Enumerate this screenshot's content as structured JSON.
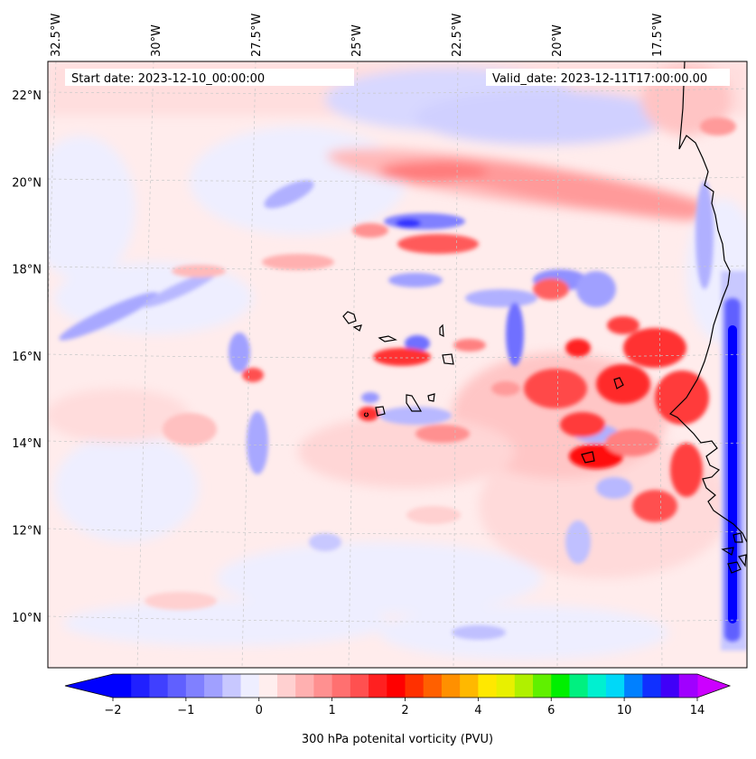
{
  "header": {
    "start_date": "Start date: 2023-12-10_00:00:00",
    "valid_date": "Valid_date: 2023-12-11T17:00:00.00"
  },
  "map": {
    "projection": "lambert-conformal",
    "lon_range": [
      -33.0,
      -15.3
    ],
    "lat_range": [
      8.9,
      22.8
    ],
    "gridlines": "dashed-light-grey",
    "lon_labels": [
      {
        "lon": -32.5,
        "text": "32.5°W"
      },
      {
        "lon": -30.0,
        "text": "30°W"
      },
      {
        "lon": -27.5,
        "text": "27.5°W"
      },
      {
        "lon": -25.0,
        "text": "25°W"
      },
      {
        "lon": -22.5,
        "text": "22.5°W"
      },
      {
        "lon": -20.0,
        "text": "20°W"
      },
      {
        "lon": -17.5,
        "text": "17.5°W"
      }
    ],
    "lat_labels": [
      {
        "lat": 22,
        "text": "22°N"
      },
      {
        "lat": 20,
        "text": "20°N"
      },
      {
        "lat": 18,
        "text": "18°N"
      },
      {
        "lat": 16,
        "text": "16°N"
      },
      {
        "lat": 14,
        "text": "14°N"
      },
      {
        "lat": 12,
        "text": "12°N"
      },
      {
        "lat": 10,
        "text": "10°N"
      }
    ],
    "features": [
      {
        "name": "west-african-coastline",
        "type": "coastline"
      },
      {
        "name": "cape-verde-islands",
        "type": "islands"
      },
      {
        "name": "bijagos-islands",
        "type": "islands"
      }
    ]
  },
  "colorbar": {
    "label": "300 hPa potenital vorticity (PVU)",
    "extend": "both",
    "under_color": "#0000ff",
    "over_color": "#cc00ff",
    "colors": [
      "#0000ff",
      "#2020ff",
      "#4040ff",
      "#6060ff",
      "#8080ff",
      "#a0a0ff",
      "#c8c8ff",
      "#eeeeff",
      "#ffeeee",
      "#ffd0d0",
      "#ffb0b0",
      "#ff9090",
      "#ff7070",
      "#ff5050",
      "#ff2020",
      "#ff0000",
      "#ff3000",
      "#ff6000",
      "#ff9000",
      "#ffb800",
      "#ffe800",
      "#e8f000",
      "#b0f000",
      "#60f000",
      "#00f000",
      "#00f080",
      "#00f0d0",
      "#00d8f8",
      "#0080ff",
      "#1030ff",
      "#4000f8",
      "#a000ff"
    ],
    "ticks": [
      {
        "value": -2,
        "text": "−2"
      },
      {
        "value": -1,
        "text": "−1"
      },
      {
        "value": 0,
        "text": "0"
      },
      {
        "value": 1,
        "text": "1"
      },
      {
        "value": 2,
        "text": "2"
      },
      {
        "value": 4,
        "text": "4"
      },
      {
        "value": 6,
        "text": "6"
      },
      {
        "value": 10,
        "text": "10"
      },
      {
        "value": 14,
        "text": "14"
      }
    ]
  }
}
